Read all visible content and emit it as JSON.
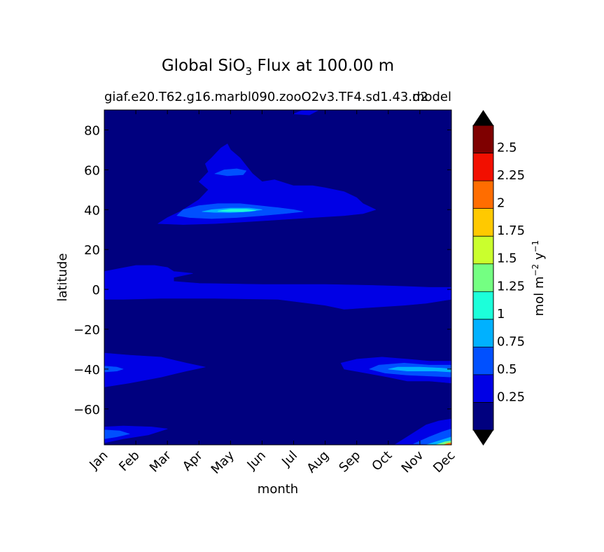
{
  "chart_data": {
    "type": "contourf",
    "title_prefix": "Global SiO",
    "title_sub": "3",
    "title_suffix": " Flux at 100.00 m",
    "case_name": "giaf.e20.T62.g16.marbl090.zooO2v3.TF4.sd1.43.d2",
    "subtitle_right": "model",
    "xlabel": "month",
    "ylabel": "latitude",
    "x_ticks": [
      "Jan",
      "Feb",
      "Mar",
      "Apr",
      "May",
      "Jun",
      "Jul",
      "Aug",
      "Sep",
      "Oct",
      "Nov",
      "Dec"
    ],
    "y_ticks": [
      80,
      60,
      40,
      20,
      0,
      -20,
      -40,
      -60
    ],
    "y_tick_labels": [
      "80",
      "60",
      "40",
      "20",
      "0",
      "−20",
      "−40",
      "−60"
    ],
    "ylim": [
      -78,
      90
    ],
    "xlim": [
      0,
      11
    ],
    "colorbar": {
      "label_text": "mol m",
      "label_exp1": "−2",
      "label_mid": " y",
      "label_exp2": "−1",
      "levels": [
        0,
        0.25,
        0.5,
        0.75,
        1.0,
        1.25,
        1.5,
        1.75,
        2.0,
        2.25,
        2.5,
        2.75
      ],
      "tick_values": [
        0.25,
        0.5,
        0.75,
        1.0,
        1.25,
        1.5,
        1.75,
        2.0,
        2.25,
        2.5
      ],
      "tick_labels": [
        "0.25",
        "0.5",
        "0.75",
        "1",
        "1.25",
        "1.5",
        "1.75",
        "2",
        "2.25",
        "2.5"
      ],
      "colors": [
        "#00007f",
        "#0000e5",
        "#0050ff",
        "#00b1ff",
        "#1cffda",
        "#74ff82",
        "#caff2d",
        "#ffc900",
        "#ff6d00",
        "#f20f00",
        "#7f0000"
      ],
      "extend_low_color": "#000000",
      "extend_high_color": "#000000"
    },
    "regions": [
      {
        "name": "north-pacific-band",
        "level": 1,
        "points": [
          [
            1.7,
            33
          ],
          [
            2.0,
            36
          ],
          [
            2.4,
            39
          ],
          [
            2.7,
            42
          ],
          [
            3.0,
            45
          ],
          [
            3.3,
            50
          ],
          [
            3.0,
            54
          ],
          [
            3.3,
            59
          ],
          [
            3.2,
            63
          ],
          [
            3.4,
            66
          ],
          [
            3.7,
            71
          ],
          [
            3.9,
            73
          ],
          [
            4.0,
            70
          ],
          [
            4.3,
            66
          ],
          [
            4.5,
            62
          ],
          [
            4.7,
            58
          ],
          [
            5.0,
            54
          ],
          [
            5.4,
            55
          ],
          [
            6.0,
            52
          ],
          [
            6.6,
            52
          ],
          [
            7.0,
            51
          ],
          [
            7.6,
            49
          ],
          [
            8.0,
            46
          ],
          [
            8.2,
            43
          ],
          [
            8.6,
            40
          ],
          [
            8.2,
            38
          ],
          [
            7.6,
            37
          ],
          [
            6.6,
            36
          ],
          [
            5.6,
            35
          ],
          [
            4.6,
            34
          ],
          [
            3.5,
            33
          ],
          [
            2.5,
            32.5
          ]
        ]
      },
      {
        "name": "north-core",
        "level": 2,
        "points": [
          [
            2.3,
            37
          ],
          [
            2.5,
            40
          ],
          [
            3.0,
            42
          ],
          [
            3.6,
            43
          ],
          [
            4.3,
            43
          ],
          [
            4.9,
            42
          ],
          [
            5.5,
            41
          ],
          [
            6.0,
            40
          ],
          [
            6.3,
            39
          ],
          [
            5.7,
            38
          ],
          [
            5.0,
            37
          ],
          [
            4.2,
            36
          ],
          [
            3.4,
            35.5
          ],
          [
            2.7,
            36
          ]
        ]
      },
      {
        "name": "north-peak",
        "level": 3,
        "points": [
          [
            3.1,
            39
          ],
          [
            3.4,
            40
          ],
          [
            4.0,
            40.8
          ],
          [
            4.6,
            40.8
          ],
          [
            5.0,
            40
          ],
          [
            4.6,
            39
          ],
          [
            4.0,
            38.5
          ],
          [
            3.5,
            38.6
          ]
        ]
      },
      {
        "name": "north-peak-inner",
        "level": 4,
        "points": [
          [
            3.6,
            39.3
          ],
          [
            4.0,
            40.2
          ],
          [
            4.5,
            40.2
          ],
          [
            4.8,
            39.6
          ],
          [
            4.4,
            39
          ],
          [
            3.9,
            39
          ]
        ]
      },
      {
        "name": "north-secondary",
        "level": 2,
        "points": [
          [
            3.5,
            58
          ],
          [
            3.8,
            60
          ],
          [
            4.2,
            60.5
          ],
          [
            4.5,
            59.5
          ],
          [
            4.4,
            57.5
          ],
          [
            3.9,
            57
          ]
        ]
      },
      {
        "name": "arctic-patch",
        "level": 1,
        "points": [
          [
            6.0,
            88
          ],
          [
            6.3,
            90
          ],
          [
            6.8,
            90
          ],
          [
            6.5,
            87.5
          ]
        ]
      },
      {
        "name": "equatorial-band",
        "level": 1,
        "points": [
          [
            0,
            9
          ],
          [
            0.5,
            10.5
          ],
          [
            1.0,
            12
          ],
          [
            1.6,
            12
          ],
          [
            2.0,
            11
          ],
          [
            2.2,
            9
          ],
          [
            2.8,
            8
          ],
          [
            2.2,
            6
          ],
          [
            2.2,
            4
          ],
          [
            3.0,
            3
          ],
          [
            5.0,
            2.5
          ],
          [
            7.0,
            2.5
          ],
          [
            8.5,
            2
          ],
          [
            9.5,
            1.5
          ],
          [
            10.3,
            1
          ],
          [
            11,
            1
          ],
          [
            11,
            -5
          ],
          [
            10.2,
            -7
          ],
          [
            9.5,
            -8
          ],
          [
            8.5,
            -9
          ],
          [
            7.6,
            -10
          ],
          [
            7.0,
            -8
          ],
          [
            5.5,
            -5
          ],
          [
            3.5,
            -4.5
          ],
          [
            1.8,
            -4.5
          ],
          [
            0.6,
            -5
          ],
          [
            0,
            -5
          ]
        ]
      },
      {
        "name": "southern-band-west",
        "level": 1,
        "points": [
          [
            0,
            -32
          ],
          [
            0.8,
            -33
          ],
          [
            1.8,
            -34
          ],
          [
            2.6,
            -37
          ],
          [
            3.2,
            -39
          ],
          [
            2.6,
            -41
          ],
          [
            1.8,
            -44
          ],
          [
            0.8,
            -47
          ],
          [
            0,
            -49
          ]
        ]
      },
      {
        "name": "southern-band-east",
        "level": 1,
        "points": [
          [
            7.5,
            -37
          ],
          [
            8.0,
            -35
          ],
          [
            8.8,
            -34
          ],
          [
            9.6,
            -35
          ],
          [
            10.3,
            -36
          ],
          [
            11,
            -36
          ],
          [
            11,
            -47
          ],
          [
            10.3,
            -46
          ],
          [
            9.6,
            -46
          ],
          [
            9.0,
            -44
          ],
          [
            8.3,
            -42
          ],
          [
            7.6,
            -40
          ]
        ]
      },
      {
        "name": "southern-core-east",
        "level": 2,
        "points": [
          [
            8.4,
            -40
          ],
          [
            8.7,
            -38
          ],
          [
            9.5,
            -37
          ],
          [
            10.3,
            -38
          ],
          [
            11,
            -38
          ],
          [
            11,
            -44
          ],
          [
            10.3,
            -43.5
          ],
          [
            9.6,
            -43
          ],
          [
            8.9,
            -42
          ]
        ]
      },
      {
        "name": "southern-peak-east",
        "level": 3,
        "points": [
          [
            9.0,
            -40
          ],
          [
            9.3,
            -39
          ],
          [
            10.0,
            -39
          ],
          [
            10.7,
            -39.5
          ],
          [
            11,
            -40
          ],
          [
            11,
            -41.5
          ],
          [
            10.5,
            -41
          ],
          [
            9.6,
            -41
          ]
        ]
      },
      {
        "name": "southern-core-west",
        "level": 2,
        "points": [
          [
            0,
            -38.5
          ],
          [
            0.4,
            -39
          ],
          [
            0.6,
            -40
          ],
          [
            0.4,
            -41
          ],
          [
            0,
            -41.5
          ]
        ]
      },
      {
        "name": "antarctic-west",
        "level": 1,
        "points": [
          [
            0,
            -69
          ],
          [
            0.6,
            -68.5
          ],
          [
            1.5,
            -69
          ],
          [
            2.0,
            -70
          ],
          [
            1.4,
            -73
          ],
          [
            0.6,
            -75
          ],
          [
            0,
            -77
          ]
        ]
      },
      {
        "name": "antarctic-west-core",
        "level": 2,
        "points": [
          [
            0,
            -70.5
          ],
          [
            0.5,
            -71
          ],
          [
            0.8,
            -72.5
          ],
          [
            0.4,
            -74
          ],
          [
            0,
            -75
          ]
        ]
      },
      {
        "name": "antarctic-east",
        "level": 1,
        "points": [
          [
            9.2,
            -78
          ],
          [
            9.8,
            -72
          ],
          [
            10.2,
            -68
          ],
          [
            10.6,
            -66
          ],
          [
            11,
            -65
          ],
          [
            11,
            -78
          ]
        ]
      },
      {
        "name": "antarctic-east-core",
        "level": 2,
        "points": [
          [
            9.8,
            -77.5
          ],
          [
            10.3,
            -74
          ],
          [
            10.7,
            -71.5
          ],
          [
            11,
            -70
          ],
          [
            11,
            -78
          ]
        ]
      },
      {
        "name": "antarctic-east-3",
        "level": 3,
        "points": [
          [
            10.2,
            -78
          ],
          [
            10.6,
            -76
          ],
          [
            11,
            -74
          ],
          [
            11,
            -78
          ]
        ]
      },
      {
        "name": "antarctic-east-4",
        "level": 5,
        "points": [
          [
            10.5,
            -78
          ],
          [
            10.8,
            -76.5
          ],
          [
            11,
            -76
          ],
          [
            11,
            -78
          ]
        ]
      },
      {
        "name": "antarctic-east-5",
        "level": 8,
        "points": [
          [
            10.75,
            -78
          ],
          [
            10.9,
            -77.2
          ],
          [
            11,
            -77
          ],
          [
            11,
            -78
          ]
        ]
      }
    ]
  }
}
